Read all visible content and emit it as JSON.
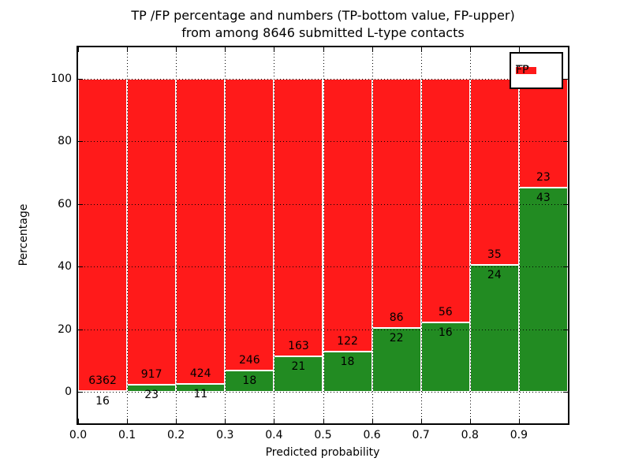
{
  "title": {
    "line1": "TP /FP percentage and numbers (TP-bottom value, FP-upper)",
    "line2": "from among 8646 submitted L-type contacts"
  },
  "axes": {
    "xlabel": "Predicted probability",
    "ylabel": "Percentage",
    "x_tick_labels": [
      "0.0",
      "0.1",
      "0.2",
      "0.3",
      "0.4",
      "0.5",
      "0.6",
      "0.7",
      "0.8",
      "0.9"
    ],
    "y_tick_labels": [
      "0",
      "20",
      "40",
      "60",
      "80",
      "100"
    ]
  },
  "legend": {
    "items": [
      {
        "label": "TP",
        "color": "#228b22"
      },
      {
        "label": "FP",
        "color": "#ff1a1a"
      }
    ]
  },
  "colors": {
    "tp": "#228b22",
    "fp": "#ff1a1a",
    "grid": "#000000",
    "frame": "#000000",
    "background": "#ffffff"
  },
  "chart_data": {
    "type": "bar",
    "stacked": true,
    "normalized": "each bin scaled to 100%",
    "title": "TP /FP percentage and numbers (TP-bottom value, FP-upper) from among 8646 submitted L-type contacts",
    "xlabel": "Predicted probability",
    "ylabel": "Percentage",
    "xlim": [
      0.0,
      1.0
    ],
    "ylim": [
      -10,
      110
    ],
    "grid": true,
    "legend_position": "upper right",
    "total_submitted": 8646,
    "bin_edges": [
      0.0,
      0.1,
      0.2,
      0.3,
      0.4,
      0.5,
      0.6,
      0.7,
      0.8,
      0.9,
      1.0
    ],
    "categories": [
      "0.0-0.1",
      "0.1-0.2",
      "0.2-0.3",
      "0.3-0.4",
      "0.4-0.5",
      "0.5-0.6",
      "0.6-0.7",
      "0.7-0.8",
      "0.8-0.9",
      "0.9-1.0"
    ],
    "series": [
      {
        "name": "TP",
        "color": "#228b22",
        "counts": [
          16,
          23,
          11,
          18,
          21,
          18,
          22,
          16,
          24,
          43
        ],
        "percent": [
          0.25,
          2.45,
          2.53,
          6.82,
          11.41,
          12.86,
          20.37,
          22.22,
          40.68,
          65.15
        ]
      },
      {
        "name": "FP",
        "color": "#ff1a1a",
        "counts": [
          6362,
          917,
          424,
          246,
          163,
          122,
          86,
          56,
          35,
          23
        ],
        "percent": [
          99.75,
          97.55,
          97.47,
          93.18,
          88.59,
          87.14,
          79.63,
          77.78,
          59.32,
          34.85
        ]
      }
    ]
  }
}
